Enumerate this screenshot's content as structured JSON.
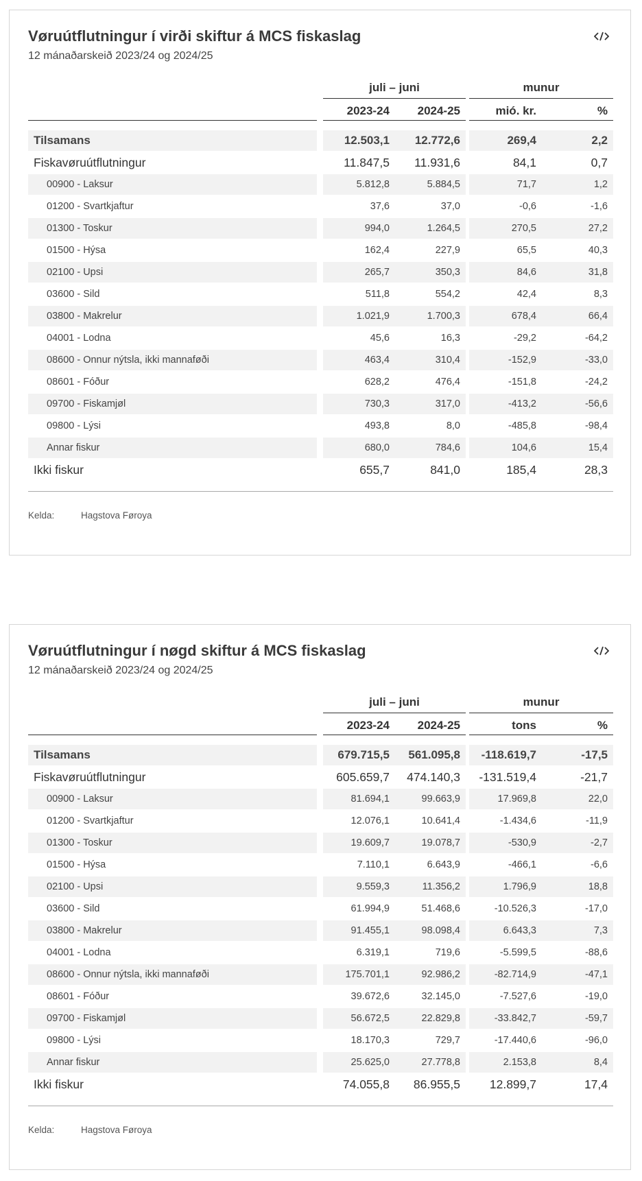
{
  "tables": [
    {
      "title": "Vøruútflutningur í virði skiftur á MCS fiskaslag",
      "subtitle": "12 mánaðarskeið 2023/24 og 2024/25",
      "group_headers": [
        "juli – juni",
        "munur"
      ],
      "columns": [
        "2023-24",
        "2024-25",
        "mió. kr.",
        "%"
      ],
      "rows": [
        {
          "label": "Tilsamans",
          "style": "total",
          "values": [
            "12.503,1",
            "12.772,6",
            "269,4",
            "2,2"
          ]
        },
        {
          "label": "Fiskavøruútflutningur",
          "style": "main",
          "values": [
            "11.847,5",
            "11.931,6",
            "84,1",
            "0,7"
          ]
        },
        {
          "label": "00900 - Laksur",
          "style": "sub",
          "values": [
            "5.812,8",
            "5.884,5",
            "71,7",
            "1,2"
          ]
        },
        {
          "label": "01200 - Svartkjaftur",
          "style": "sub",
          "values": [
            "37,6",
            "37,0",
            "-0,6",
            "-1,6"
          ]
        },
        {
          "label": "01300 - Toskur",
          "style": "sub",
          "values": [
            "994,0",
            "1.264,5",
            "270,5",
            "27,2"
          ]
        },
        {
          "label": "01500 - Hýsa",
          "style": "sub",
          "values": [
            "162,4",
            "227,9",
            "65,5",
            "40,3"
          ]
        },
        {
          "label": "02100 - Upsi",
          "style": "sub",
          "values": [
            "265,7",
            "350,3",
            "84,6",
            "31,8"
          ]
        },
        {
          "label": "03600 - Sild",
          "style": "sub",
          "values": [
            "511,8",
            "554,2",
            "42,4",
            "8,3"
          ]
        },
        {
          "label": "03800 - Makrelur",
          "style": "sub",
          "values": [
            "1.021,9",
            "1.700,3",
            "678,4",
            "66,4"
          ]
        },
        {
          "label": "04001 - Lodna",
          "style": "sub",
          "values": [
            "45,6",
            "16,3",
            "-29,2",
            "-64,2"
          ]
        },
        {
          "label": "08600 - Onnur nýtsla, ikki mannaføði",
          "style": "sub",
          "values": [
            "463,4",
            "310,4",
            "-152,9",
            "-33,0"
          ]
        },
        {
          "label": "08601 - Fóður",
          "style": "sub",
          "values": [
            "628,2",
            "476,4",
            "-151,8",
            "-24,2"
          ]
        },
        {
          "label": "09700 - Fiskamjøl",
          "style": "sub",
          "values": [
            "730,3",
            "317,0",
            "-413,2",
            "-56,6"
          ]
        },
        {
          "label": "09800 - Lýsi",
          "style": "sub",
          "values": [
            "493,8",
            "8,0",
            "-485,8",
            "-98,4"
          ]
        },
        {
          "label": "Annar fiskur",
          "style": "sub",
          "values": [
            "680,0",
            "784,6",
            "104,6",
            "15,4"
          ]
        },
        {
          "label": "Ikki fiskur",
          "style": "main",
          "values": [
            "655,7",
            "841,0",
            "185,4",
            "28,3"
          ]
        }
      ],
      "source": {
        "label": "Kelda:",
        "value": "Hagstova Føroya"
      }
    },
    {
      "title": "Vøruútflutningur í nøgd skiftur á MCS fiskaslag",
      "subtitle": "12 mánaðarskeið 2023/24 og 2024/25",
      "group_headers": [
        "juli – juni",
        "munur"
      ],
      "columns": [
        "2023-24",
        "2024-25",
        "tons",
        "%"
      ],
      "rows": [
        {
          "label": "Tilsamans",
          "style": "total",
          "values": [
            "679.715,5",
            "561.095,8",
            "-118.619,7",
            "-17,5"
          ]
        },
        {
          "label": "Fiskavøruútflutningur",
          "style": "main",
          "values": [
            "605.659,7",
            "474.140,3",
            "-131.519,4",
            "-21,7"
          ]
        },
        {
          "label": "00900 - Laksur",
          "style": "sub",
          "values": [
            "81.694,1",
            "99.663,9",
            "17.969,8",
            "22,0"
          ]
        },
        {
          "label": "01200 - Svartkjaftur",
          "style": "sub",
          "values": [
            "12.076,1",
            "10.641,4",
            "-1.434,6",
            "-11,9"
          ]
        },
        {
          "label": "01300 - Toskur",
          "style": "sub",
          "values": [
            "19.609,7",
            "19.078,7",
            "-530,9",
            "-2,7"
          ]
        },
        {
          "label": "01500 - Hýsa",
          "style": "sub",
          "values": [
            "7.110,1",
            "6.643,9",
            "-466,1",
            "-6,6"
          ]
        },
        {
          "label": "02100 - Upsi",
          "style": "sub",
          "values": [
            "9.559,3",
            "11.356,2",
            "1.796,9",
            "18,8"
          ]
        },
        {
          "label": "03600 - Sild",
          "style": "sub",
          "values": [
            "61.994,9",
            "51.468,6",
            "-10.526,3",
            "-17,0"
          ]
        },
        {
          "label": "03800 - Makrelur",
          "style": "sub",
          "values": [
            "91.455,1",
            "98.098,4",
            "6.643,3",
            "7,3"
          ]
        },
        {
          "label": "04001 - Lodna",
          "style": "sub",
          "values": [
            "6.319,1",
            "719,6",
            "-5.599,5",
            "-88,6"
          ]
        },
        {
          "label": "08600 - Onnur nýtsla, ikki mannaføði",
          "style": "sub",
          "values": [
            "175.701,1",
            "92.986,2",
            "-82.714,9",
            "-47,1"
          ]
        },
        {
          "label": "08601 - Fóður",
          "style": "sub",
          "values": [
            "39.672,6",
            "32.145,0",
            "-7.527,6",
            "-19,0"
          ]
        },
        {
          "label": "09700 - Fiskamjøl",
          "style": "sub",
          "values": [
            "56.672,5",
            "22.829,8",
            "-33.842,7",
            "-59,7"
          ]
        },
        {
          "label": "09800 - Lýsi",
          "style": "sub",
          "values": [
            "18.170,3",
            "729,7",
            "-17.440,6",
            "-96,0"
          ]
        },
        {
          "label": "Annar fiskur",
          "style": "sub",
          "values": [
            "25.625,0",
            "27.778,8",
            "2.153,8",
            "8,4"
          ]
        },
        {
          "label": "Ikki fiskur",
          "style": "main",
          "values": [
            "74.055,8",
            "86.955,5",
            "12.899,7",
            "17,4"
          ]
        }
      ],
      "source": {
        "label": "Kelda:",
        "value": "Hagstova Føroya"
      }
    }
  ]
}
